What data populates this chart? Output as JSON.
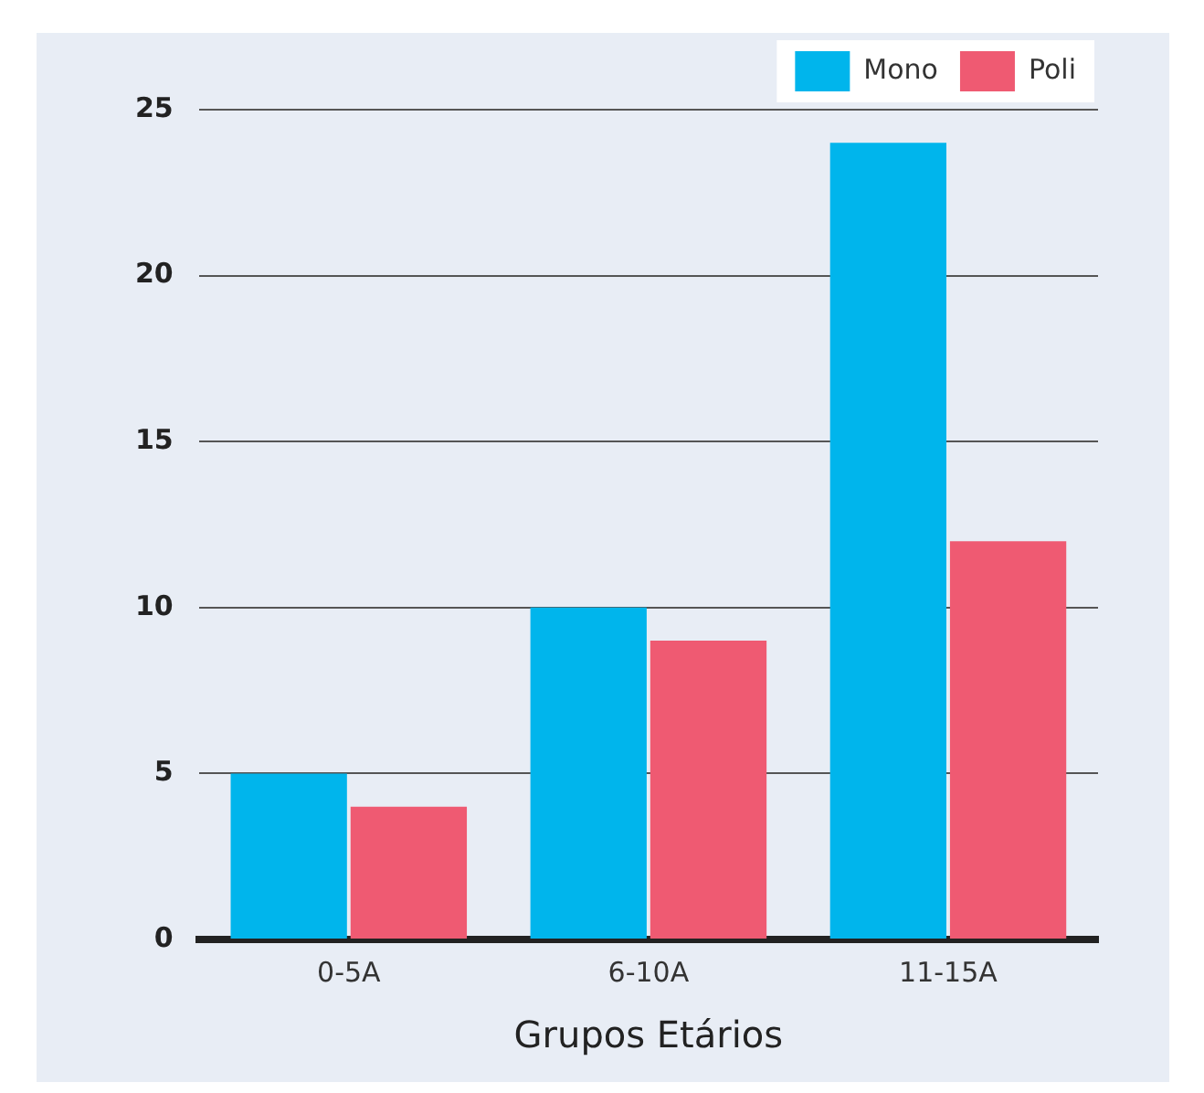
{
  "chart_data": {
    "type": "bar",
    "xlabel": "Grupos Etários",
    "categories": [
      "0-5A",
      "6-10A",
      "11-15A"
    ],
    "series": [
      {
        "name": "Mono",
        "color": "#00b5ec",
        "values": [
          5,
          10,
          24
        ]
      },
      {
        "name": "Poli",
        "color": "#ef5a72",
        "values": [
          4,
          9,
          12
        ]
      }
    ],
    "ylim": [
      0,
      25
    ],
    "yticks": [
      0,
      5,
      10,
      15,
      20,
      25
    ],
    "grid": "y",
    "legend": "top right"
  }
}
